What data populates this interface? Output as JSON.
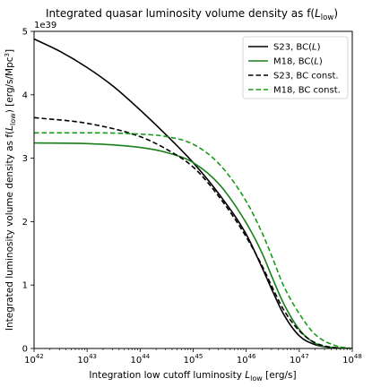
{
  "chart_data": {
    "type": "line",
    "title": "Integrated quasar luminosity volume density as f(L_low)",
    "title_parts": {
      "prefix": "Integrated quasar luminosity volume density as f(",
      "var": "L",
      "sub": "low",
      "suffix": ")"
    },
    "xlabel_parts": {
      "prefix": "Integration low cutoff luminosity ",
      "var": "L",
      "sub": "low",
      "suffix": " [erg/s]"
    },
    "ylabel_parts": {
      "prefix": "Integrated luminosity volume density as f(",
      "var": "L",
      "sub": "low",
      "mid": ") [erg/s/Mpc",
      "sup": "3",
      "suffix": "]"
    },
    "x_scale": "log",
    "xlim": [
      1e+42,
      1e+48
    ],
    "x_ticks": [
      {
        "value": 1e+42,
        "base": "10",
        "exp": "42"
      },
      {
        "value": 1e+43,
        "base": "10",
        "exp": "43"
      },
      {
        "value": 1e+44,
        "base": "10",
        "exp": "44"
      },
      {
        "value": 1e+45,
        "base": "10",
        "exp": "45"
      },
      {
        "value": 1e+46,
        "base": "10",
        "exp": "46"
      },
      {
        "value": 1e+47,
        "base": "10",
        "exp": "47"
      },
      {
        "value": 1e+48,
        "base": "10",
        "exp": "48"
      }
    ],
    "y_offset_label": "1e39",
    "ylim": [
      0,
      5
    ],
    "y_ticks": [
      0,
      1,
      2,
      3,
      4,
      5
    ],
    "grid": false,
    "legend_position": "top-right",
    "series": [
      {
        "name": "S23, BC(L)",
        "name_parts": {
          "prefix": "S23, BC(",
          "var": "L",
          "suffix": ")"
        },
        "color": "#000000",
        "dash": "solid",
        "x": [
          1e+42,
          3.16e+42,
          1e+43,
          3.16e+43,
          1e+44,
          3.16e+44,
          1e+45,
          3.16e+45,
          1e+46,
          2e+46,
          3.16e+46,
          5e+46,
          1e+47,
          2e+47,
          5e+47,
          1e+48
        ],
        "y": [
          4.88,
          4.68,
          4.43,
          4.13,
          3.76,
          3.36,
          2.93,
          2.42,
          1.8,
          1.27,
          0.9,
          0.55,
          0.2,
          0.06,
          0.01,
          0.0
        ]
      },
      {
        "name": "M18, BC(L)",
        "name_parts": {
          "prefix": "M18, BC(",
          "var": "L",
          "suffix": ")"
        },
        "color": "#1a7f1a",
        "dash": "solid",
        "x": [
          1e+42,
          1e+43,
          1e+44,
          3.16e+44,
          1e+45,
          3.16e+45,
          1e+46,
          2e+46,
          3.16e+46,
          5e+46,
          1e+47,
          2e+47,
          5e+47,
          1e+48
        ],
        "y": [
          3.24,
          3.23,
          3.17,
          3.09,
          2.93,
          2.58,
          1.98,
          1.5,
          1.1,
          0.72,
          0.3,
          0.08,
          0.01,
          0.0
        ]
      },
      {
        "name": "S23, BC const.",
        "color": "#000000",
        "dash": "dashed",
        "x": [
          1e+42,
          1e+43,
          1e+44,
          3.16e+44,
          1e+45,
          3.16e+45,
          1e+46,
          2e+46,
          3.16e+46,
          5e+46,
          1e+47,
          2e+47,
          5e+47,
          1e+48
        ],
        "y": [
          3.64,
          3.55,
          3.34,
          3.14,
          2.86,
          2.38,
          1.76,
          1.3,
          0.95,
          0.62,
          0.28,
          0.09,
          0.01,
          0.0
        ]
      },
      {
        "name": "M18, BC const.",
        "color": "#1a9a1a",
        "dash": "dashed",
        "x": [
          1e+42,
          1e+43,
          1e+44,
          3.16e+44,
          1e+45,
          3.16e+45,
          1e+46,
          2e+46,
          3.16e+46,
          5e+46,
          1e+47,
          2e+47,
          5e+47,
          1e+48
        ],
        "y": [
          3.4,
          3.4,
          3.38,
          3.34,
          3.22,
          2.9,
          2.32,
          1.82,
          1.42,
          1.0,
          0.55,
          0.22,
          0.04,
          0.0
        ]
      }
    ]
  }
}
